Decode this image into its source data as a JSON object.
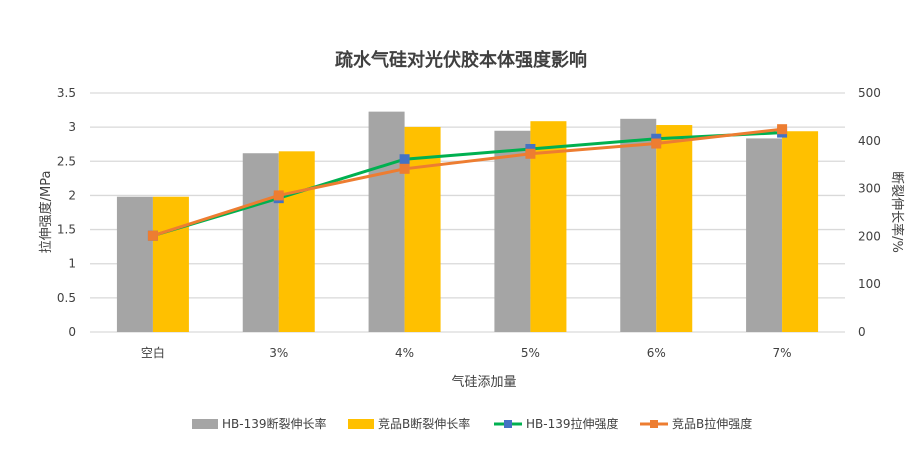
{
  "chart_data": {
    "type": "bar+line",
    "title": "疏水气硅对光伏胶本体强度影响",
    "xlabel": "气硅添加量",
    "ylabel": "拉伸强度/MPa",
    "y2label": "断裂伸长率/%",
    "categories": [
      "空白",
      "3%",
      "4%",
      "5%",
      "6%",
      "7%"
    ],
    "ylim": [
      0,
      3.5
    ],
    "yticks": [
      "0",
      "0.5",
      "1",
      "1.5",
      "2",
      "2.5",
      "3",
      "3.5"
    ],
    "y2lim": [
      0,
      500
    ],
    "y2ticks": [
      "0",
      "100",
      "200",
      "300",
      "400",
      "500"
    ],
    "grid": true,
    "legend_position": "bottom",
    "series": [
      {
        "name": "HB-139断裂伸长率",
        "kind": "bar",
        "axis": "right",
        "color": "#A5A5A5",
        "values": [
          283,
          374,
          461,
          421,
          446,
          405
        ]
      },
      {
        "name": "竞品B断裂伸长率",
        "kind": "bar",
        "axis": "right",
        "color": "#FFC000",
        "values": [
          283,
          378,
          429,
          441,
          433,
          420
        ]
      },
      {
        "name": "HB-139拉伸强度",
        "kind": "line",
        "axis": "left",
        "color": "#00B050",
        "marker": "#4472C4",
        "values": [
          1.41,
          1.96,
          2.53,
          2.68,
          2.83,
          2.92
        ]
      },
      {
        "name": "竞品B拉伸强度",
        "kind": "line",
        "axis": "left",
        "color": "#ED7D31",
        "marker": "#ED7D31",
        "values": [
          1.41,
          2.0,
          2.39,
          2.61,
          2.76,
          2.97
        ]
      }
    ]
  }
}
